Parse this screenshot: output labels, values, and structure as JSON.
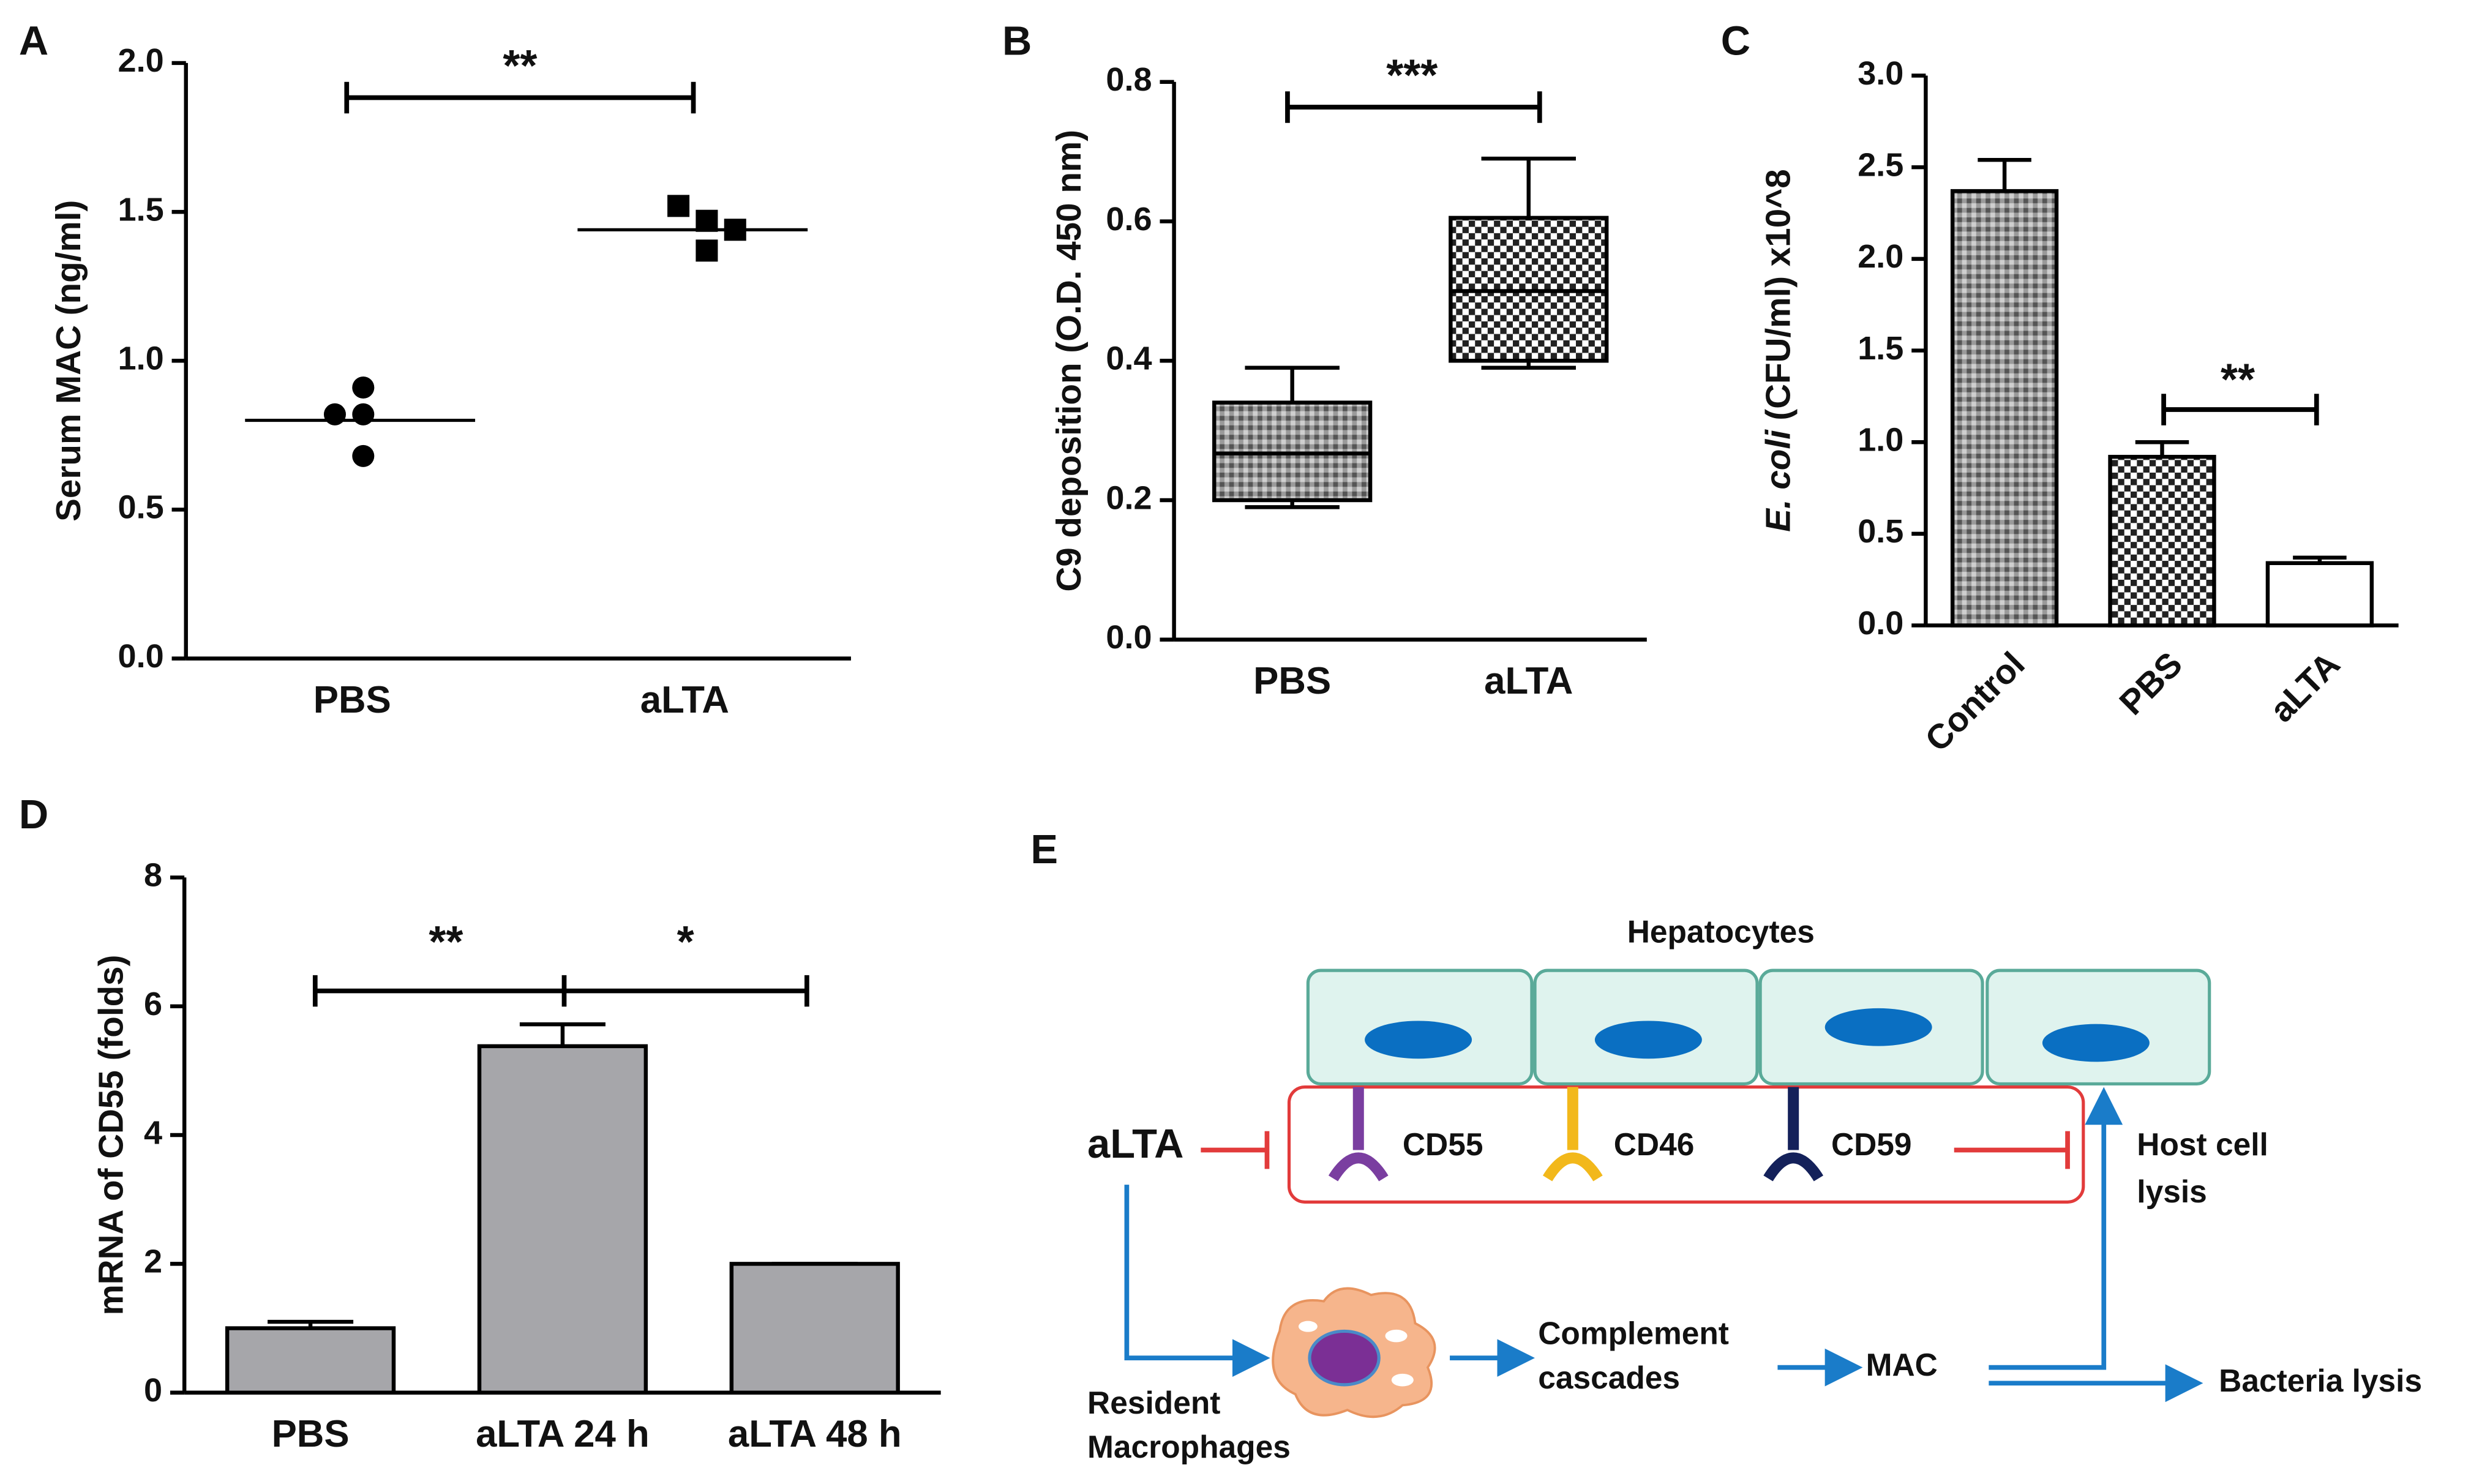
{
  "chart_data": [
    {
      "type": "dot",
      "label": "A",
      "ylabel": "Serum MAC (ng/ml)",
      "categories": [
        "PBS",
        "aLTA"
      ],
      "points": [
        [
          0.91,
          0.82,
          0.82,
          0.68
        ],
        [
          1.52,
          1.47,
          1.44,
          1.37
        ]
      ],
      "means": [
        0.8,
        1.44
      ],
      "markers": [
        "circle",
        "square"
      ],
      "color": "#000000",
      "ylim": [
        0,
        2
      ],
      "yticks": [
        {
          "value": 0,
          "label": "0.0"
        },
        0.5,
        {
          "value": 1,
          "label": "1.0"
        },
        1.5,
        {
          "value": 2,
          "label": "2.0"
        }
      ],
      "annotations": [
        "**"
      ]
    },
    {
      "type": "box",
      "label": "B",
      "ylabel": "C9 deposition (O.D. 450 nm)",
      "categories": [
        "PBS",
        "aLTA"
      ],
      "boxes": [
        {
          "min": 0.19,
          "q1": 0.2,
          "median": 0.267,
          "q3": 0.34,
          "max": 0.39
        },
        {
          "min": 0.39,
          "q1": 0.4,
          "median": 0.5,
          "q3": 0.605,
          "max": 0.69
        }
      ],
      "fills": [
        "crosshatch",
        "checker"
      ],
      "ylim": [
        0,
        0.8
      ],
      "yticks": [
        {
          "value": 0,
          "label": "0.0"
        },
        0.2,
        0.4,
        0.6,
        0.8
      ],
      "annotations": [
        "***"
      ]
    },
    {
      "type": "bar",
      "label": "C",
      "ylabel": [
        "E. coli",
        "(CFU/ml) x10^8"
      ],
      "categories": [
        "Control",
        "PBS",
        "aLTA"
      ],
      "values": [
        2.37,
        0.92,
        0.34
      ],
      "errors": [
        0.17,
        0.08,
        0.03
      ],
      "fills": [
        "crosshatch",
        "checker",
        "#ffffff"
      ],
      "ylim": [
        0,
        3
      ],
      "yticks": [
        {
          "value": 0,
          "label": "0.0"
        },
        0.5,
        {
          "value": 1,
          "label": "1.0"
        },
        1.5,
        {
          "value": 2,
          "label": "2.0"
        },
        2.5,
        {
          "value": 3,
          "label": "3.0"
        }
      ],
      "annotations": [
        "**"
      ]
    },
    {
      "type": "bar",
      "label": "D",
      "ylabel": "mRNA of CD55 (folds)",
      "categories": [
        "PBS",
        "aLTA 24 h",
        "aLTA 48 h"
      ],
      "values": [
        1.0,
        5.38,
        2.0
      ],
      "errors": [
        0.1,
        0.34,
        0
      ],
      "fills": [
        "#a6a6aa",
        "#a6a6aa",
        "#a6a6aa"
      ],
      "ylim": [
        0,
        8
      ],
      "yticks": [
        0,
        2,
        4,
        6,
        8
      ],
      "annotations": [
        "**",
        "*"
      ]
    }
  ],
  "diagram": {
    "label": "E",
    "hepatocytes": "Hepatocytes",
    "inhibitor": "aLTA",
    "receptors": [
      "CD55",
      "CD46",
      "CD59"
    ],
    "host_lysis": [
      "Host cell",
      "lysis"
    ],
    "macrophages": [
      "Resident",
      "Macrophages"
    ],
    "complement": [
      "Complement",
      "cascades"
    ],
    "mac": "MAC",
    "bacteria_lysis": "Bacteria lysis"
  }
}
